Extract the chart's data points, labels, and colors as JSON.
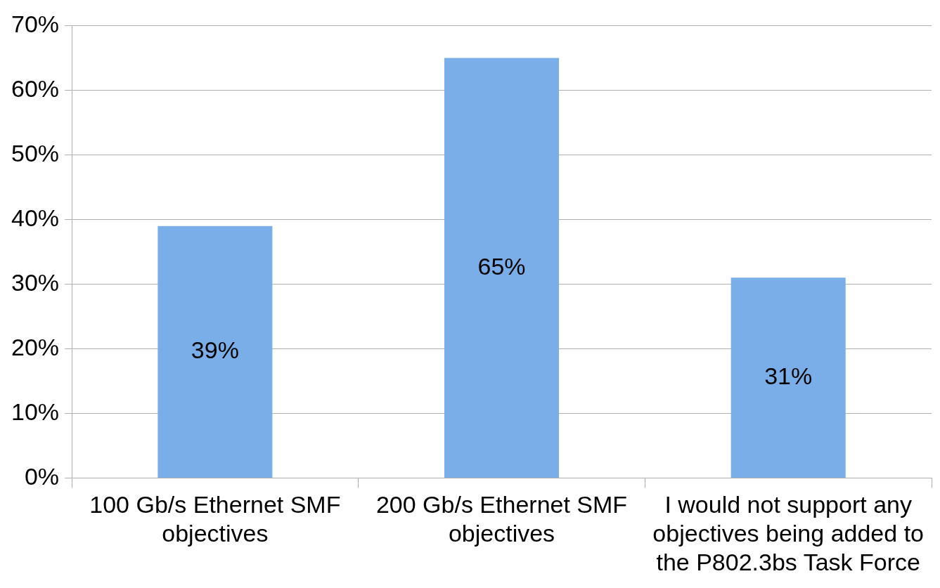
{
  "chart_data": {
    "type": "bar",
    "categories": [
      "100 Gb/s Ethernet SMF objectives",
      "200 Gb/s Ethernet SMF objectives",
      "I would not support any objectives being added to the P802.3bs Task Force"
    ],
    "values": [
      39,
      65,
      31
    ],
    "color": "#7aaee9",
    "value_labels": [
      "39%",
      "65%",
      "31%"
    ],
    "ylim": [
      0,
      70
    ],
    "yticks": [
      {
        "value": 0,
        "label": "0%"
      },
      {
        "value": 10,
        "label": "10%"
      },
      {
        "value": 20,
        "label": "20%"
      },
      {
        "value": 30,
        "label": "30%"
      },
      {
        "value": 40,
        "label": "40%"
      },
      {
        "value": 50,
        "label": "50%"
      },
      {
        "value": 60,
        "label": "60%"
      },
      {
        "value": 70,
        "label": "70%"
      }
    ],
    "grid": "y",
    "legend": false
  }
}
